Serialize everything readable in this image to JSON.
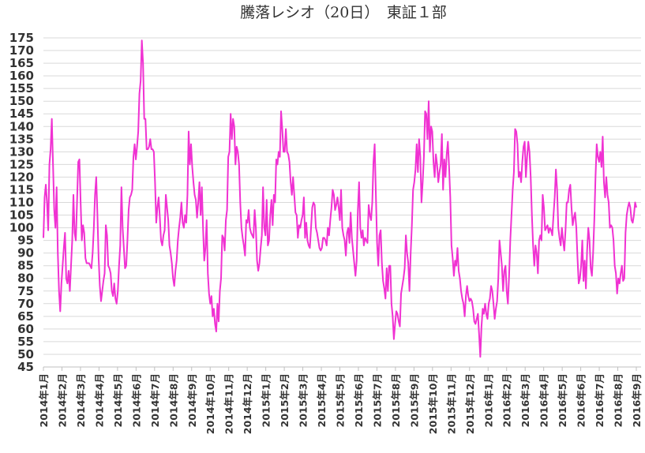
{
  "chart_data": {
    "type": "line",
    "title": "騰落レシオ（20日）　東証１部",
    "xlabel": "",
    "ylabel": "",
    "ylim": [
      45,
      175
    ],
    "ytick_step": 5,
    "grid": true,
    "legend": "none",
    "line_color": "#f032d2",
    "x_tick_labels": [
      "2014年1月",
      "2014年2月",
      "2014年3月",
      "2014年4月",
      "2014年5月",
      "2014年6月",
      "2014年7月",
      "2014年8月",
      "2014年9月",
      "2014年10月",
      "2014年11月",
      "2014年12月",
      "2015年1月",
      "2015年2月",
      "2015年3月",
      "2015年4月",
      "2015年5月",
      "2015年6月",
      "2015年7月",
      "2015年8月",
      "2015年9月",
      "2015年10月",
      "2015年11月",
      "2015年12月",
      "2016年1月",
      "2016年2月",
      "2016年3月",
      "2016年4月",
      "2016年5月",
      "2016年6月",
      "2016年7月",
      "2016年8月",
      "2016年9月"
    ],
    "series": [
      {
        "values": [
          96,
          112,
          117,
          110,
          99,
          125,
          131,
          143,
          125,
          107,
          100,
          116,
          90,
          75,
          67,
          78,
          85,
          92,
          98,
          80,
          78,
          83,
          75,
          85,
          95,
          113,
          98,
          95,
          110,
          126,
          127,
          110,
          95,
          101,
          98,
          88,
          86,
          86,
          86,
          85,
          84,
          90,
          100,
          113,
          120,
          105,
          88,
          77,
          71,
          75,
          79,
          82,
          101,
          97,
          85,
          84,
          82,
          75,
          73,
          78,
          72,
          70,
          75,
          85,
          93,
          116,
          100,
          92,
          84,
          85,
          95,
          107,
          112,
          113,
          115,
          128,
          133,
          127,
          132,
          138,
          153,
          158,
          174,
          165,
          143,
          143,
          131,
          131,
          132,
          135,
          131,
          131,
          130,
          118,
          102,
          108,
          112,
          104,
          95,
          93,
          97,
          99,
          113,
          108,
          103,
          93,
          90,
          86,
          80,
          77,
          83,
          87,
          95,
          100,
          104,
          110,
          102,
          100,
          105,
          102,
          113,
          138,
          125,
          133,
          124,
          118,
          113,
          111,
          104,
          110,
          118,
          105,
          116,
          100,
          87,
          92,
          103,
          82,
          74,
          70,
          73,
          65,
          68,
          62,
          59,
          70,
          63,
          75,
          80,
          97,
          96,
          91,
          103,
          107,
          128,
          130,
          145,
          135,
          143,
          140,
          125,
          132,
          130,
          125,
          110,
          100,
          96,
          93,
          89,
          103,
          102,
          107,
          100,
          98,
          97,
          96,
          107,
          100,
          87,
          83,
          86,
          92,
          97,
          116,
          100,
          97,
          111,
          93,
          95,
          105,
          111,
          101,
          113,
          110,
          127,
          125,
          130,
          128,
          146,
          139,
          130,
          130,
          139,
          130,
          129,
          126,
          118,
          113,
          120,
          113,
          106,
          105,
          96,
          101,
          100,
          103,
          105,
          112,
          96,
          102,
          95,
          93,
          92,
          100,
          108,
          110,
          109,
          100,
          98,
          95,
          92,
          91,
          92,
          96,
          96,
          95,
          93,
          100,
          97,
          103,
          108,
          115,
          113,
          107,
          109,
          112,
          108,
          103,
          115,
          100,
          97,
          95,
          89,
          98,
          100,
          94,
          106,
          96,
          91,
          86,
          81,
          87,
          107,
          118,
          100,
          96,
          99,
          93,
          96,
          95,
          94,
          109,
          105,
          103,
          110,
          126,
          133,
          113,
          94,
          85,
          97,
          99,
          86,
          79,
          76,
          72,
          84,
          75,
          85,
          85,
          70,
          65,
          56,
          62,
          67,
          66,
          63,
          61,
          74,
          77,
          80,
          84,
          97,
          90,
          86,
          75,
          90,
          101,
          115,
          118,
          123,
          133,
          122,
          135,
          128,
          110,
          118,
          128,
          146,
          145,
          135,
          150,
          130,
          140,
          138,
          126,
          120,
          129,
          125,
          118,
          122,
          125,
          137,
          115,
          127,
          120,
          129,
          134,
          124,
          112,
          93,
          88,
          81,
          87,
          85,
          92,
          83,
          80,
          75,
          72,
          70,
          65,
          73,
          77,
          73,
          71,
          72,
          71,
          68,
          63,
          62,
          64,
          66,
          58,
          49,
          61,
          68,
          66,
          70,
          66,
          64,
          70,
          72,
          77,
          75,
          70,
          64,
          68,
          71,
          80,
          95,
          90,
          85,
          75,
          83,
          85,
          75,
          70,
          81,
          95,
          105,
          115,
          122,
          139,
          138,
          133,
          120,
          122,
          118,
          126,
          132,
          134,
          120,
          128,
          134,
          130,
          120,
          105,
          93,
          85,
          93,
          90,
          82,
          95,
          97,
          95,
          113,
          108,
          99,
          100,
          101,
          98,
          100,
          99,
          97,
          105,
          112,
          123,
          115,
          100,
          96,
          93,
          100,
          95,
          91,
          99,
          110,
          110,
          115,
          117,
          108,
          101,
          104,
          106,
          100,
          88,
          78,
          80,
          85,
          95,
          79,
          87,
          76,
          91,
          100,
          95,
          84,
          81,
          90,
          103,
          120,
          133,
          128,
          126,
          130,
          124,
          136,
          118,
          112,
          120,
          113,
          110,
          100,
          101,
          100,
          95,
          85,
          82,
          74,
          80,
          78,
          82,
          85,
          79,
          80,
          98,
          105,
          108,
          110,
          108,
          103,
          102,
          105,
          110,
          108
        ]
      }
    ]
  }
}
